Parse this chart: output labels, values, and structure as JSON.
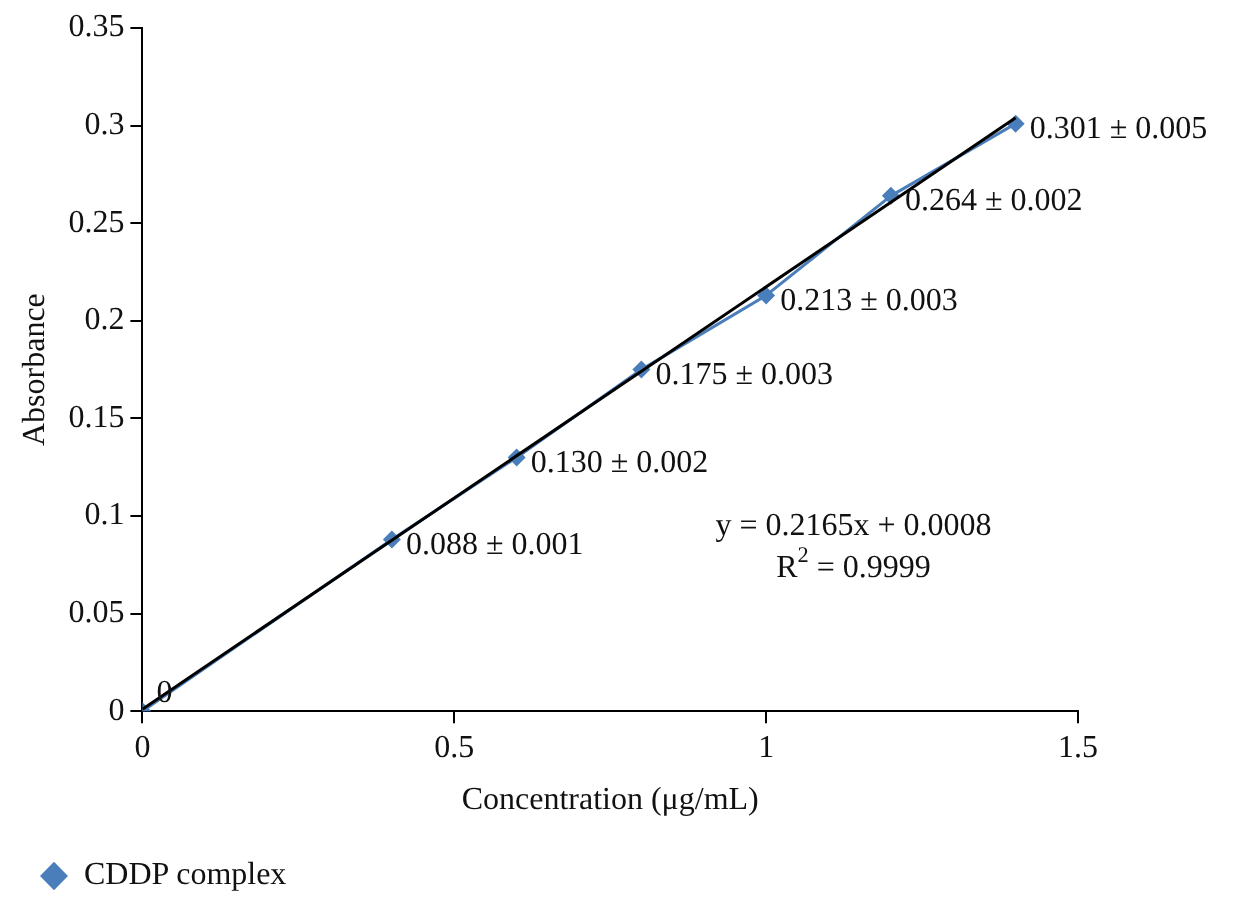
{
  "chart_data": {
    "type": "line",
    "xlabel": "Concentration (μg/mL)",
    "ylabel": "Absorbance",
    "xlim": [
      0,
      1.5
    ],
    "xticks": [
      0,
      0.5,
      1,
      1.5
    ],
    "ylim": [
      0,
      0.35
    ],
    "yticks": [
      0,
      0.05,
      0.1,
      0.15,
      0.2,
      0.25,
      0.3,
      0.35
    ],
    "grid": false,
    "legend": "bottom",
    "marker": "diamond",
    "line_style": "solid",
    "series": [
      {
        "name": "CDDP complex",
        "color": "#4a7ebb",
        "x": [
          0,
          0.4,
          0.6,
          0.8,
          1.0,
          1.2,
          1.4
        ],
        "values": [
          0,
          0.088,
          0.13,
          0.175,
          0.213,
          0.264,
          0.301
        ],
        "value_labels": [
          "0",
          "0.088 ± 0.001",
          "0.130 ± 0.002",
          "0.175 ± 0.003",
          "0.213 ± 0.003",
          "0.264 ± 0.002",
          "0.301 ± 0.005"
        ]
      },
      {
        "type": "line",
        "color": "#000000",
        "marker": "none",
        "x": [
          0,
          1.4
        ],
        "values": [
          0.001,
          0.304
        ]
      }
    ],
    "annotations": [
      "y = 0.2165x + 0.0008",
      "R$^{2}$ = 0.9999"
    ]
  }
}
